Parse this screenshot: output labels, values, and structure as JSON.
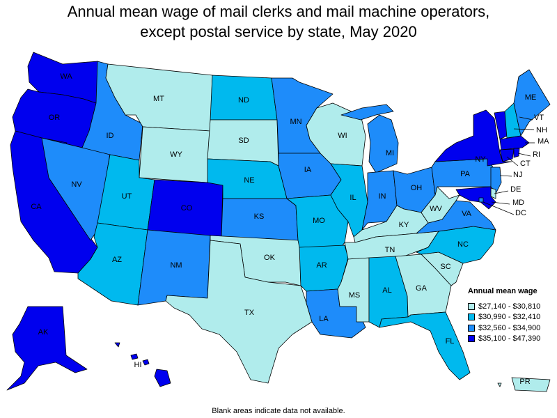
{
  "title": {
    "line1": "Annual mean wage of mail clerks and mail machine operators,",
    "line2": "except postal service by state, May 2020"
  },
  "legend": {
    "title": "Annual mean wage",
    "bins": [
      {
        "label": "$27,140 - $30,810",
        "color": "#b0ecec"
      },
      {
        "label": "$30,990 - $32,410",
        "color": "#00b9ee"
      },
      {
        "label": "$32,560 - $34,900",
        "color": "#1e8cfa"
      },
      {
        "label": "$35,100 - $47,390",
        "color": "#0000ee"
      }
    ]
  },
  "states": {
    "WA": 3,
    "OR": 3,
    "CA": 3,
    "NV": 2,
    "ID": 2,
    "MT": 0,
    "WY": 0,
    "UT": 1,
    "AZ": 1,
    "CO": 3,
    "NM": 2,
    "ND": 1,
    "SD": 0,
    "NE": 1,
    "KS": 2,
    "OK": 0,
    "TX": 0,
    "MN": 2,
    "IA": 2,
    "MO": 1,
    "AR": 1,
    "LA": 2,
    "WI": 0,
    "IL": 1,
    "MI": 2,
    "IN": 2,
    "OH": 2,
    "KY": 0,
    "TN": 0,
    "MS": 0,
    "AL": 1,
    "GA": 0,
    "FL": 1,
    "SC": 0,
    "NC": 1,
    "VA": 2,
    "WV": 0,
    "PA": 2,
    "NY": 3,
    "NJ": 2,
    "DE": 0,
    "MD": 3,
    "DC": 2,
    "CT": 3,
    "RI": 3,
    "MA": 3,
    "VT": 3,
    "NH": 1,
    "ME": 2,
    "AK": 3,
    "HI": 3,
    "PR": 0
  },
  "footnote": "Blank areas indicate data not available."
}
